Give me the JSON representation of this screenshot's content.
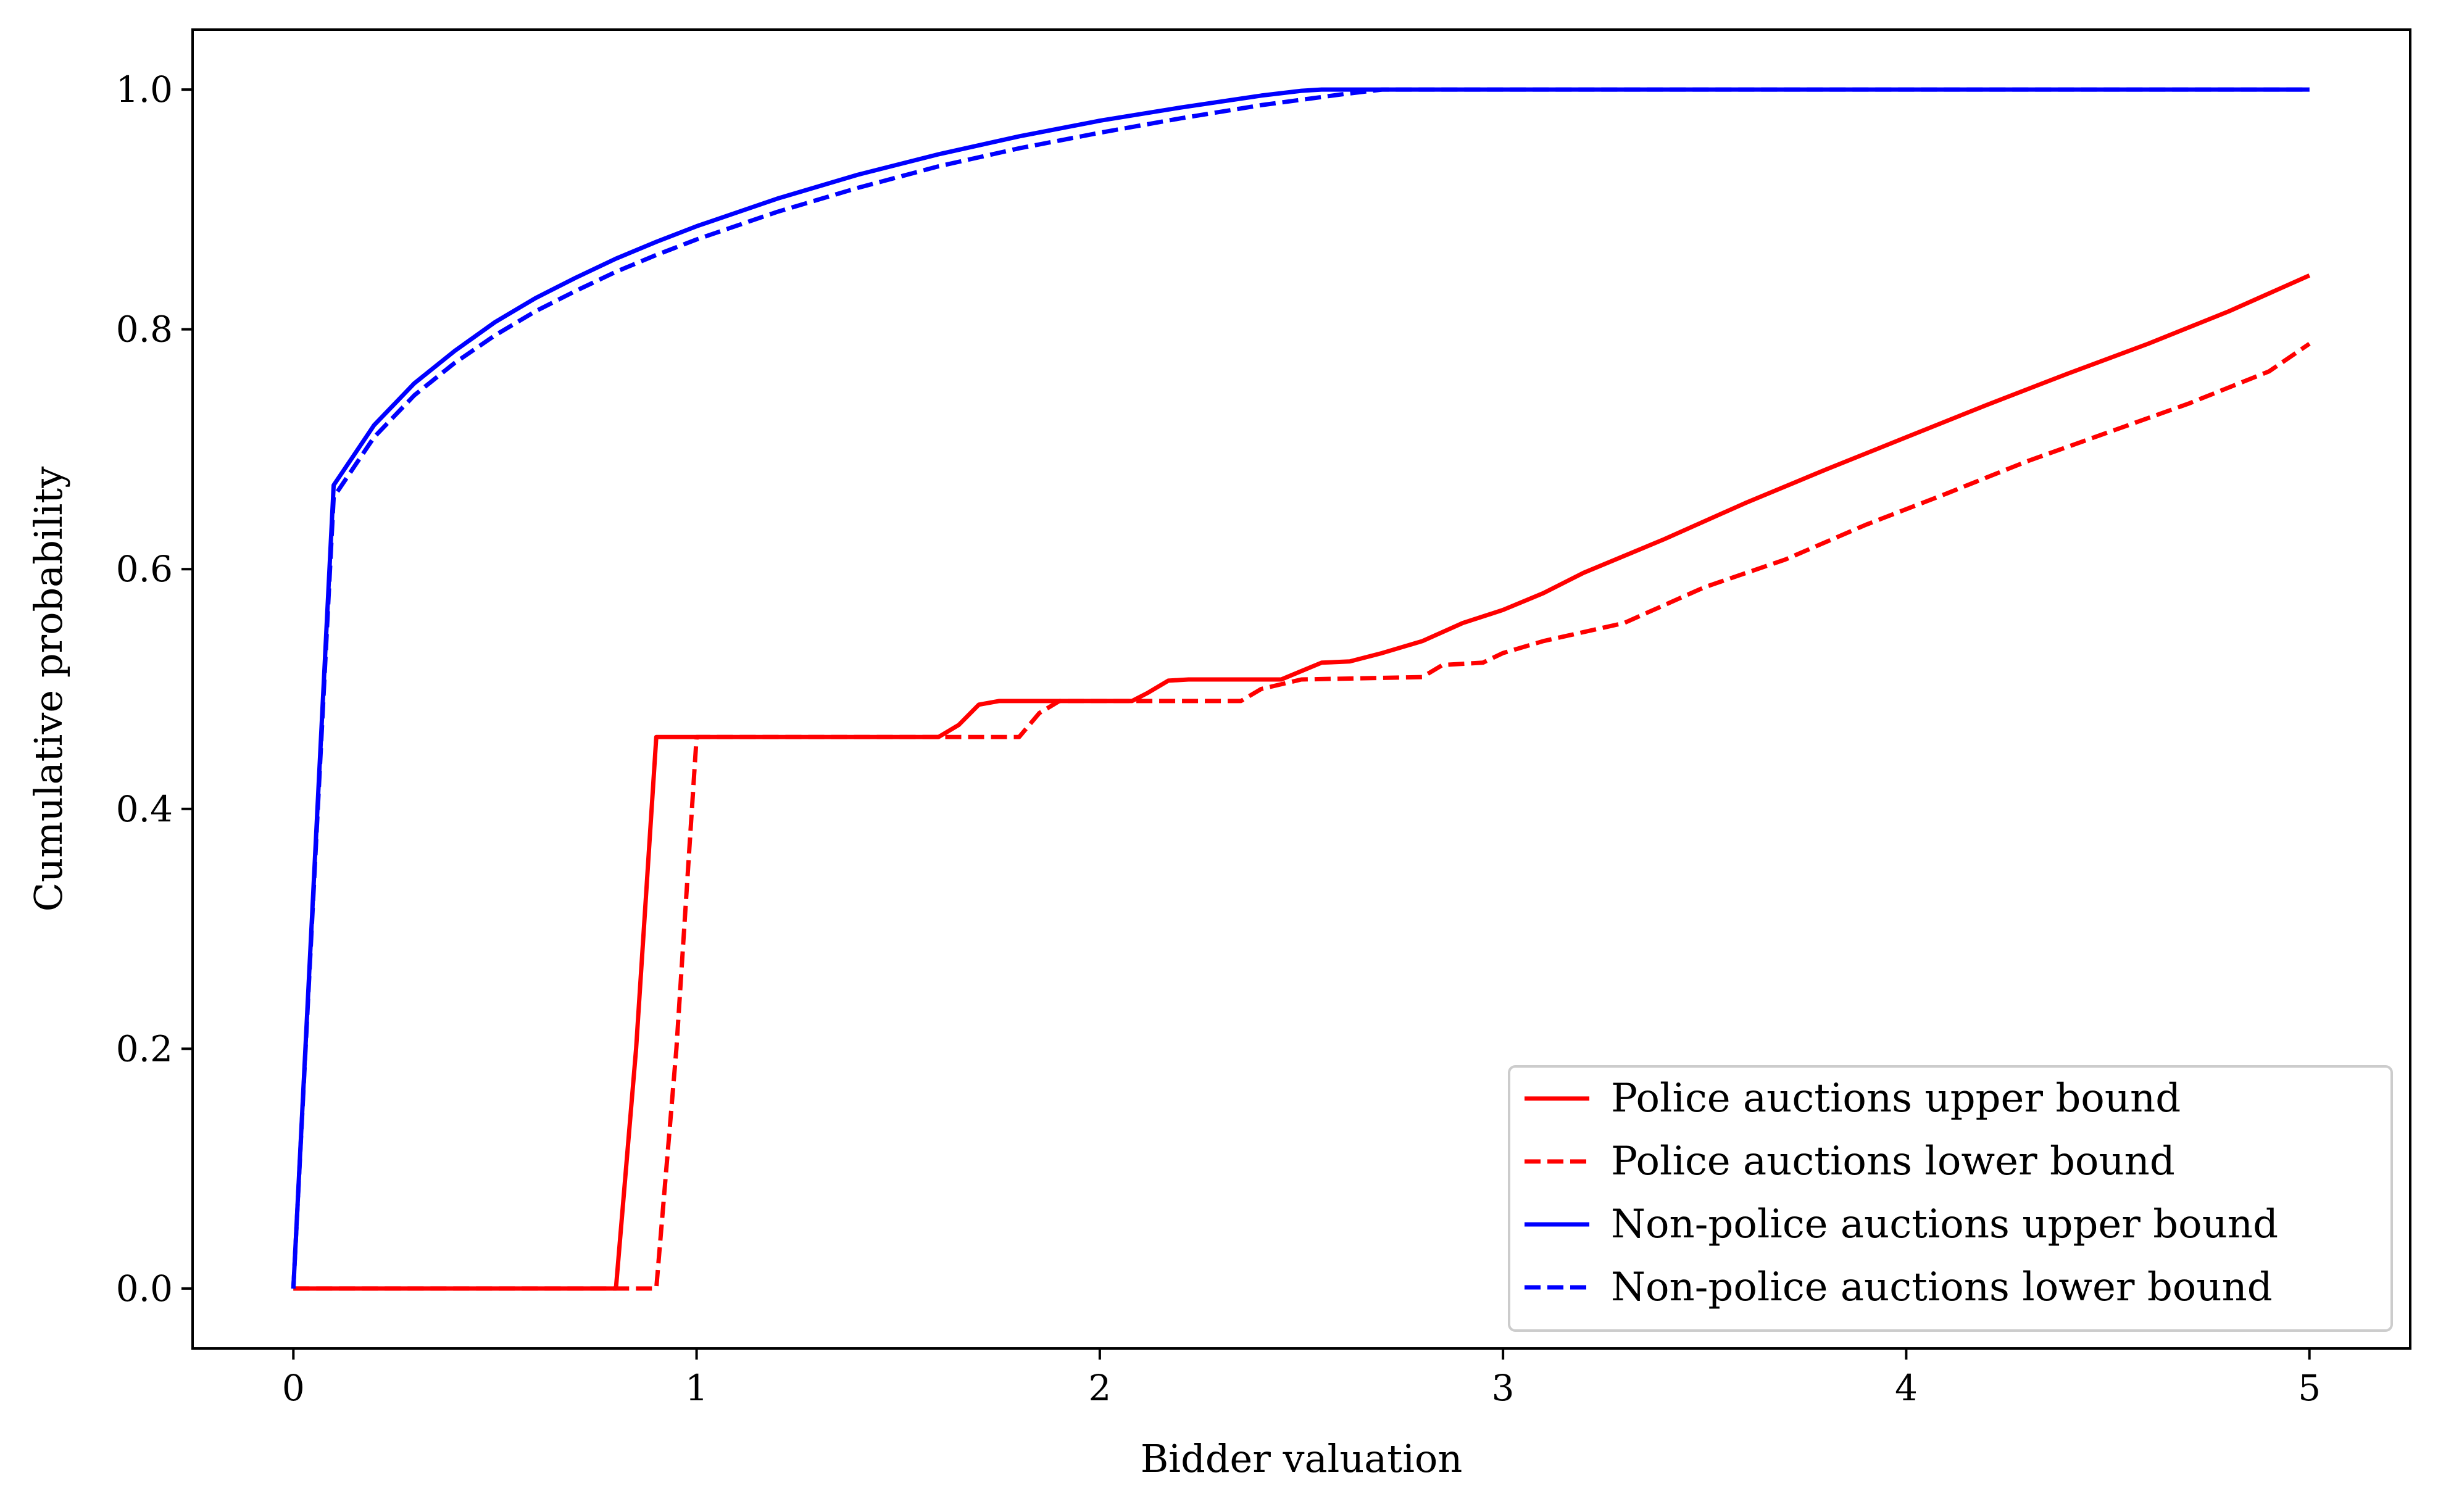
{
  "chart_data": {
    "type": "line",
    "title": "",
    "xlabel": "Bidder valuation",
    "ylabel": "Cumulative probability",
    "xlim": [
      -0.25,
      5.25
    ],
    "ylim": [
      -0.05,
      1.05
    ],
    "xticks": [
      0,
      1,
      2,
      3,
      4,
      5
    ],
    "xtick_labels": [
      "0",
      "1",
      "2",
      "3",
      "4",
      "5"
    ],
    "yticks": [
      0.0,
      0.2,
      0.4,
      0.6,
      0.8,
      1.0
    ],
    "ytick_labels": [
      "0.0",
      "0.2",
      "0.4",
      "0.6",
      "0.8",
      "1.0"
    ],
    "grid": false,
    "legend_position": "bottom-right",
    "series": [
      {
        "name": "Police auctions upper bound",
        "color": "#ff0000",
        "style": "solid",
        "points": [
          [
            0,
            0
          ],
          [
            0.8,
            0
          ],
          [
            0.85,
            0.2
          ],
          [
            0.9,
            0.46
          ],
          [
            1.6,
            0.46
          ],
          [
            1.65,
            0.47
          ],
          [
            1.7,
            0.487
          ],
          [
            1.75,
            0.49
          ],
          [
            2.08,
            0.49
          ],
          [
            2.12,
            0.497
          ],
          [
            2.17,
            0.507
          ],
          [
            2.22,
            0.508
          ],
          [
            2.45,
            0.508
          ],
          [
            2.5,
            0.515
          ],
          [
            2.55,
            0.522
          ],
          [
            2.62,
            0.523
          ],
          [
            2.7,
            0.53
          ],
          [
            2.8,
            0.54
          ],
          [
            2.9,
            0.555
          ],
          [
            3.0,
            0.566
          ],
          [
            3.1,
            0.58
          ],
          [
            3.2,
            0.597
          ],
          [
            3.4,
            0.625
          ],
          [
            3.6,
            0.655
          ],
          [
            3.8,
            0.683
          ],
          [
            4.0,
            0.71
          ],
          [
            4.2,
            0.737
          ],
          [
            4.4,
            0.763
          ],
          [
            4.6,
            0.788
          ],
          [
            4.8,
            0.815
          ],
          [
            5.0,
            0.845
          ]
        ]
      },
      {
        "name": "Police auctions lower bound",
        "color": "#ff0000",
        "style": "dashed",
        "points": [
          [
            0,
            0
          ],
          [
            0.9,
            0
          ],
          [
            0.95,
            0.2
          ],
          [
            1.0,
            0.46
          ],
          [
            1.8,
            0.46
          ],
          [
            1.85,
            0.48
          ],
          [
            1.9,
            0.49
          ],
          [
            2.35,
            0.49
          ],
          [
            2.4,
            0.5
          ],
          [
            2.5,
            0.508
          ],
          [
            2.8,
            0.51
          ],
          [
            2.85,
            0.52
          ],
          [
            2.95,
            0.522
          ],
          [
            3.0,
            0.53
          ],
          [
            3.1,
            0.54
          ],
          [
            3.3,
            0.555
          ],
          [
            3.5,
            0.585
          ],
          [
            3.7,
            0.608
          ],
          [
            3.9,
            0.637
          ],
          [
            4.1,
            0.663
          ],
          [
            4.3,
            0.69
          ],
          [
            4.5,
            0.714
          ],
          [
            4.7,
            0.738
          ],
          [
            4.9,
            0.765
          ],
          [
            5.0,
            0.788
          ]
        ]
      },
      {
        "name": "Non-police auctions upper bound",
        "color": "#0000ff",
        "style": "solid",
        "points": [
          [
            0,
            0
          ],
          [
            0.1,
            0.67
          ],
          [
            0.15,
            0.695
          ],
          [
            0.2,
            0.72
          ],
          [
            0.3,
            0.755
          ],
          [
            0.4,
            0.782
          ],
          [
            0.5,
            0.806
          ],
          [
            0.6,
            0.826
          ],
          [
            0.7,
            0.843
          ],
          [
            0.8,
            0.859
          ],
          [
            0.9,
            0.873
          ],
          [
            1.0,
            0.886
          ],
          [
            1.2,
            0.909
          ],
          [
            1.4,
            0.929
          ],
          [
            1.6,
            0.946
          ],
          [
            1.8,
            0.961
          ],
          [
            2.0,
            0.974
          ],
          [
            2.2,
            0.985
          ],
          [
            2.4,
            0.995
          ],
          [
            2.5,
            0.999
          ],
          [
            2.55,
            1.0
          ],
          [
            5.0,
            1.0
          ]
        ]
      },
      {
        "name": "Non-police auctions lower bound",
        "color": "#0000ff",
        "style": "dashed",
        "points": [
          [
            0,
            0
          ],
          [
            0.1,
            0.66
          ],
          [
            0.15,
            0.685
          ],
          [
            0.2,
            0.71
          ],
          [
            0.3,
            0.745
          ],
          [
            0.4,
            0.772
          ],
          [
            0.5,
            0.795
          ],
          [
            0.6,
            0.815
          ],
          [
            0.7,
            0.832
          ],
          [
            0.8,
            0.848
          ],
          [
            0.9,
            0.862
          ],
          [
            1.0,
            0.875
          ],
          [
            1.2,
            0.898
          ],
          [
            1.4,
            0.918
          ],
          [
            1.6,
            0.936
          ],
          [
            1.8,
            0.951
          ],
          [
            2.0,
            0.964
          ],
          [
            2.2,
            0.976
          ],
          [
            2.4,
            0.987
          ],
          [
            2.6,
            0.996
          ],
          [
            2.7,
            1.0
          ],
          [
            5.0,
            1.0
          ]
        ]
      }
    ]
  }
}
